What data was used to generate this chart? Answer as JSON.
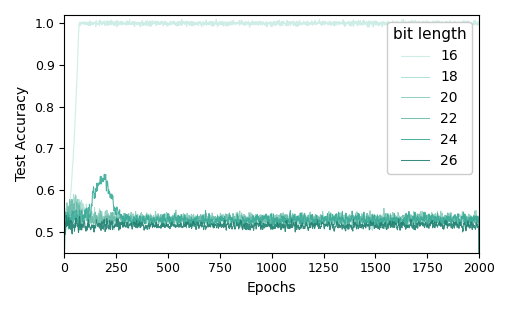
{
  "title": "",
  "xlabel": "Epochs",
  "ylabel": "Test Accuracy",
  "xlim": [
    0,
    2000
  ],
  "ylim": [
    0.45,
    1.02
  ],
  "yticks": [
    0.5,
    0.6,
    0.7,
    0.8,
    0.9,
    1.0
  ],
  "xticks": [
    0,
    250,
    500,
    750,
    1000,
    1250,
    1500,
    1750,
    2000
  ],
  "legend_title": "bit length",
  "bit_lengths": [
    16,
    18,
    20,
    22,
    24,
    26
  ],
  "colors": {
    "16": "#c8ece4",
    "18": "#aaddd2",
    "20": "#88ccbc",
    "22": "#6abbaa",
    "24": "#3aaa97",
    "26": "#208070"
  },
  "n_epochs": 2000,
  "figsize": [
    5.1,
    3.1
  ],
  "dpi": 100
}
